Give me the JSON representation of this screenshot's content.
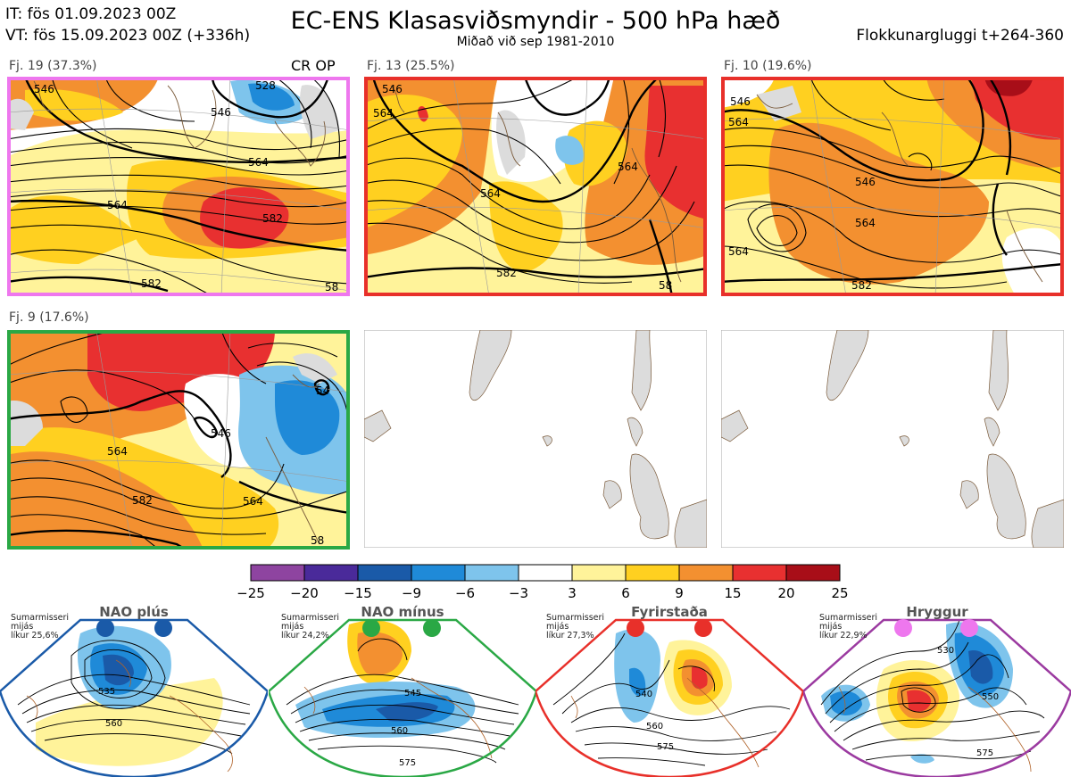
{
  "header": {
    "init_time": "IT: fös 01.09.2023 00Z",
    "valid_time": "VT: fös 15.09.2023 00Z  (+336h)",
    "title": "EC-ENS Klasasviðsmyndir - 500 hPa hæð",
    "subtitle": "Miðað við sep 1981-2010",
    "window": "Flokkunargluggi t+264-360"
  },
  "panels": [
    {
      "label": "Fj. 19 (37.3%)",
      "marker": "CR OP",
      "border": "#ee77ee",
      "contour_labels": [
        "528",
        "546",
        "564",
        "564",
        "582",
        "582",
        "546",
        "58"
      ]
    },
    {
      "label": "Fj. 13 (25.5%)",
      "marker": "",
      "border": "#e8302a",
      "contour_labels": [
        "546",
        "564",
        "564",
        "564",
        "582",
        "58"
      ]
    },
    {
      "label": "Fj. 10 (19.6%)",
      "marker": "",
      "border": "#e8302a",
      "contour_labels": [
        "546",
        "564",
        "564",
        "564",
        "582",
        "546"
      ]
    },
    {
      "label": "Fj. 9 (17.6%)",
      "marker": "",
      "border": "#2aa845",
      "contour_labels": [
        "546",
        "564",
        "564",
        "582",
        "58",
        "54"
      ]
    }
  ],
  "colorbar": {
    "colors": [
      "#8e44a0",
      "#4a2a9a",
      "#1a5aa8",
      "#1f8ad8",
      "#7ec4ec",
      "#ffffff",
      "#fff39a",
      "#ffd020",
      "#f39030",
      "#e83030",
      "#a80e18"
    ],
    "labels": [
      "−25",
      "−20",
      "−15",
      "−9",
      "−6",
      "−3",
      "3",
      "6",
      "9",
      "15",
      "20",
      "25"
    ]
  },
  "regimes": [
    {
      "title": "NAO plús",
      "note": [
        "Sumarmisseri",
        "mijás",
        "líkur 25,6%"
      ],
      "color": "#1a5aa8",
      "contour_labels": [
        "535",
        "560"
      ]
    },
    {
      "title": "NAO mínus",
      "note": [
        "Sumarmisseri",
        "mijás",
        "líkur 24,2%"
      ],
      "color": "#2aa845",
      "contour_labels": [
        "545",
        "560",
        "575"
      ]
    },
    {
      "title": "Fyrirstaða",
      "note": [
        "Sumarmisseri",
        "mijás",
        "líkur 27,3%"
      ],
      "color": "#e8302a",
      "contour_labels": [
        "540",
        "560",
        "575"
      ]
    },
    {
      "title": "Hryggur",
      "note": [
        "Sumarmisseri",
        "mijás",
        "líkur 22,9%"
      ],
      "color": "#9b3aa0",
      "contour_labels": [
        "530",
        "550",
        "575"
      ]
    }
  ]
}
